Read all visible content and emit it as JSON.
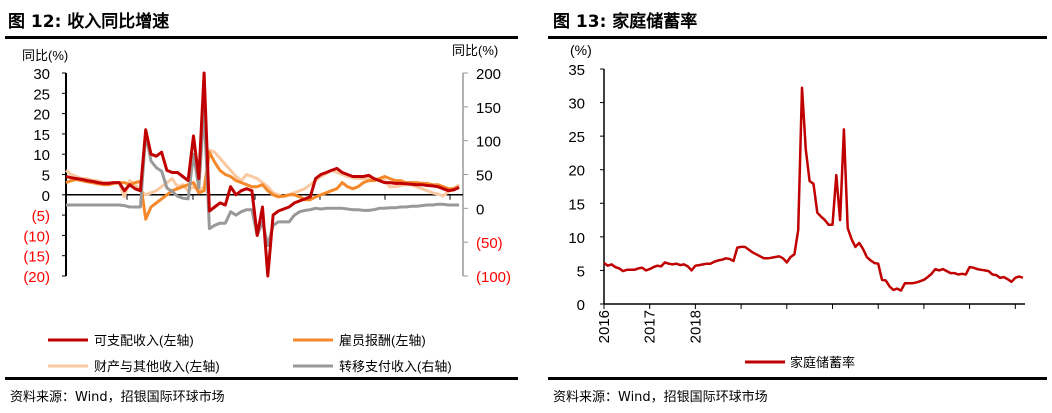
{
  "left": {
    "title": "图 12: 收入同比增速",
    "source": "资料来源：Wind，招银国际环球市场"
  },
  "right": {
    "title": "图 13: 家庭储蓄率",
    "source": "资料来源：Wind，招银国际环球市场"
  },
  "colors": {
    "red": "#c00000",
    "orange": "#f5882a",
    "peach": "#fbc9a1",
    "gray": "#999999",
    "neg_label": "#ff0000"
  },
  "chart_data": [
    {
      "type": "line",
      "title": "收入同比增速",
      "ylabel": "同比(%)",
      "y2label": "同比(%)",
      "ylim": [
        -20,
        30
      ],
      "y2lim": [
        -100,
        200
      ],
      "yticks": [
        "30",
        "25",
        "20",
        "15",
        "10",
        "5",
        "0",
        "(5)",
        "(10)",
        "(15)",
        "(20)"
      ],
      "y2ticks": [
        "200",
        "150",
        "100",
        "50",
        "0",
        "(50)",
        "(100)"
      ],
      "legend_position": "bottom",
      "series": [
        {
          "name": "可支配收入(左轴)",
          "axis": "left",
          "color": "#c00000",
          "values": [
            4.5,
            4.2,
            4,
            3.8,
            3.5,
            3.3,
            3,
            2.8,
            2.8,
            3,
            3,
            1,
            2.5,
            1.5,
            1,
            16,
            10,
            9.5,
            10.5,
            6,
            5.5,
            5.5,
            4.5,
            3.5,
            14.5,
            4,
            30,
            -4,
            -3,
            -2,
            -2.5,
            2,
            0,
            1,
            1.5,
            1,
            -10,
            -3,
            -20,
            -5,
            -4,
            -3.5,
            -3,
            -2,
            -1.5,
            -1,
            -0.5,
            4,
            5,
            5.5,
            6,
            6.5,
            5.5,
            5,
            4.5,
            4.5,
            4.5,
            4.8,
            4,
            3.5,
            3,
            3,
            2.8,
            2.8,
            2.7,
            2.6,
            2.5,
            2.5,
            2.3,
            2.2,
            2,
            1.5,
            1,
            1.2,
            1.8
          ]
        },
        {
          "name": "雇员报酬(左轴)",
          "axis": "left",
          "color": "#f5882a",
          "values": [
            3,
            3.5,
            3.8,
            3.5,
            3.2,
            3,
            2.7,
            2.5,
            2.5,
            2.8,
            3,
            3,
            2.5,
            3,
            3.3,
            -6,
            -3,
            -2,
            -1,
            0,
            1,
            1.5,
            2,
            2.5,
            3,
            0.5,
            1,
            10.5,
            8,
            6,
            5,
            4.5,
            3.5,
            3,
            2.5,
            2,
            2,
            2.5,
            1,
            0,
            -0.5,
            -0.3,
            0,
            0,
            -0.5,
            -1.2,
            -1.2,
            -0.5,
            0,
            0.5,
            1,
            1.5,
            3,
            2,
            1.5,
            2,
            3,
            3.5,
            3.5,
            4,
            4.5,
            4,
            3.5,
            3.5,
            3,
            3,
            3,
            2.8,
            2.8,
            2.5,
            2.5,
            2,
            1.5,
            1.5,
            2
          ]
        },
        {
          "name": "财产与其他收入(左轴)",
          "axis": "left",
          "color": "#fbc9a1",
          "values": [
            6,
            5,
            4.5,
            4,
            4,
            3.5,
            3.5,
            3,
            3,
            3,
            3,
            -0.5,
            3.5,
            2.5,
            1,
            0,
            0.5,
            1,
            2,
            3,
            4,
            2,
            2.5,
            1,
            2,
            1,
            2,
            11,
            10.5,
            9,
            7.5,
            6,
            4.5,
            3.5,
            5,
            4.5,
            4,
            3,
            2,
            0.5,
            0,
            -0.5,
            0,
            0.5,
            1,
            1.5,
            2.5,
            3.5,
            4.5,
            5.2,
            6,
            5.5,
            5,
            4.5,
            4.2,
            4,
            4,
            4,
            4,
            3.8,
            3.5,
            2,
            2,
            2.3,
            2.5,
            2.5,
            2,
            1.5,
            1,
            0.5,
            0.2,
            -0.3,
            0.8,
            1.5,
            2.5
          ]
        },
        {
          "name": "转移支付收入(右轴)",
          "axis": "right",
          "color": "#999999",
          "values": [
            5,
            5,
            5,
            5,
            5,
            5,
            5,
            5,
            5,
            5,
            5,
            4,
            2,
            2,
            2,
            110,
            70,
            60,
            55,
            30,
            25,
            18,
            15,
            14,
            80,
            30,
            145,
            -30,
            -25,
            -22,
            -22,
            -5,
            -10,
            -5,
            -2,
            -2,
            -40,
            -20,
            -55,
            -25,
            -20,
            -20,
            -20,
            -10,
            -5,
            -3,
            -2,
            0,
            -1,
            0,
            0,
            0,
            0,
            -1,
            -2,
            -2,
            -3,
            -3,
            -2,
            0,
            0,
            1,
            1,
            2,
            2,
            3,
            3,
            4,
            5,
            5,
            6,
            6,
            5,
            5,
            5
          ]
        }
      ]
    },
    {
      "type": "line",
      "title": "家庭储蓄率",
      "ylabel": "(%)",
      "ylim": [
        0,
        35
      ],
      "yticks": [
        "35",
        "30",
        "25",
        "20",
        "15",
        "10",
        "5",
        "0"
      ],
      "xticks": [
        "2016",
        "2017",
        "2018"
      ],
      "x_start": "2016-01",
      "frequency": "monthly",
      "legend_position": "bottom",
      "series": [
        {
          "name": "家庭储蓄率",
          "color": "#c00000",
          "values": [
            6.1,
            5.7,
            5.9,
            5.5,
            5.3,
            4.9,
            5.1,
            5.1,
            5.1,
            5.3,
            5.4,
            5.0,
            5.2,
            5.5,
            5.7,
            5.6,
            6.2,
            6.0,
            5.9,
            6.0,
            5.8,
            5.9,
            5.6,
            5.0,
            5.7,
            5.8,
            5.9,
            6.0,
            6.0,
            6.3,
            6.5,
            6.6,
            6.8,
            6.7,
            6.4,
            8.4,
            8.5,
            8.5,
            8.1,
            7.7,
            7.4,
            7.1,
            6.8,
            6.8,
            6.9,
            7.0,
            7.1,
            6.8,
            6.2,
            7.0,
            7.4,
            11,
            32.2,
            23,
            18.3,
            17.9,
            13.6,
            13,
            12.5,
            11.8,
            11.8,
            19.2,
            12.5,
            26,
            11.3,
            9.7,
            8.5,
            9.1,
            8.2,
            7.0,
            6.5,
            6.1,
            6.0,
            3.6,
            3.5,
            2.6,
            2.1,
            2.3,
            2.0,
            3.1,
            3.1,
            3.1,
            3.2,
            3.4,
            3.6,
            4.0,
            4.5,
            5.2,
            5.0,
            5.2,
            4.9,
            4.6,
            4.6,
            4.4,
            4.5,
            4.4,
            5.5,
            5.4,
            5.2,
            5.1,
            5.0,
            4.9,
            4.4,
            4.3,
            3.9,
            4.0,
            3.7,
            3.3,
            3.9,
            4.1,
            3.9
          ]
        }
      ]
    }
  ]
}
